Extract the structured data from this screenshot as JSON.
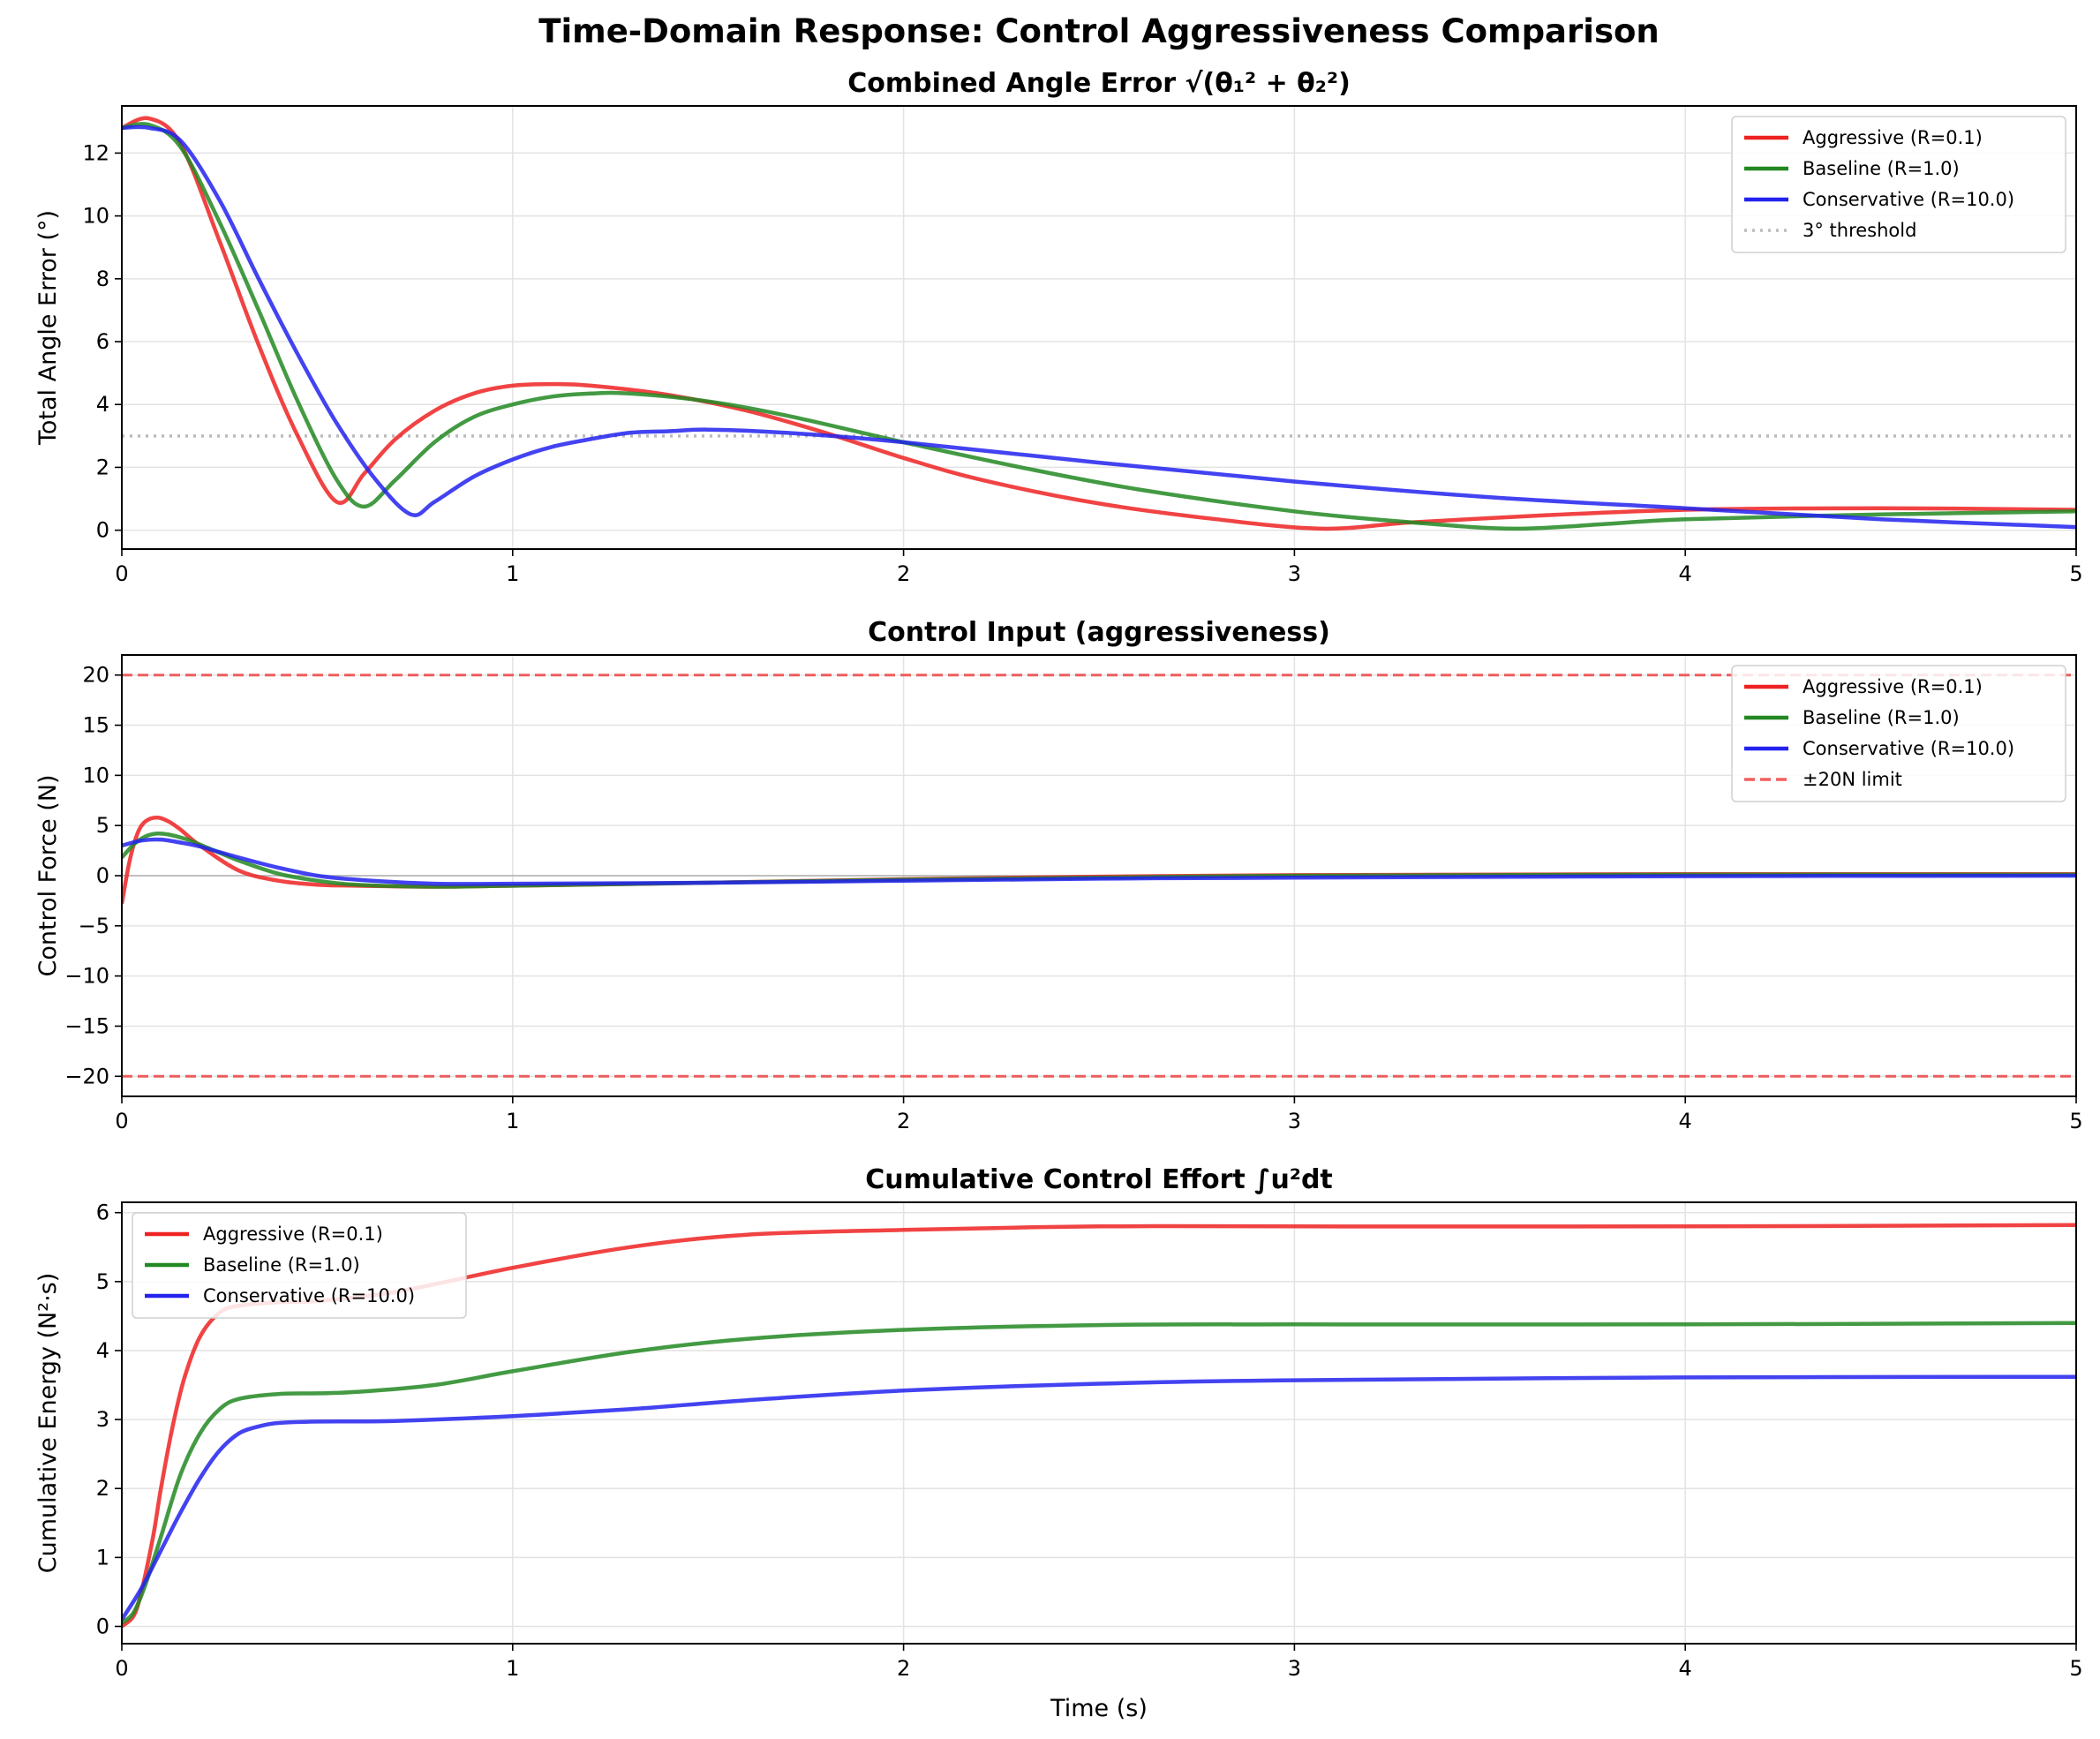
{
  "suptitle": "Time-Domain Response: Control Aggressiveness Comparison",
  "colors": {
    "aggressive": "#ee2222",
    "baseline": "#228822",
    "conservative": "#2222ee",
    "threshold": "#bbbbbb",
    "limit": "#ee4444"
  },
  "chart_data": [
    {
      "type": "line",
      "title": "Combined Angle Error √(θ₁² + θ₂²)",
      "xlabel": "",
      "ylabel": "Total Angle Error (°)",
      "xlim": [
        0,
        5
      ],
      "ylim": [
        -0.6,
        13.5
      ],
      "xticks": [
        0,
        1,
        2,
        3,
        4,
        5
      ],
      "yticks": [
        0,
        2,
        4,
        6,
        8,
        10,
        12
      ],
      "grid": true,
      "legend": "top-right",
      "series": [
        {
          "name": "Aggressive (R=0.1)",
          "color": "#ee2222",
          "x": [
            0,
            0.07,
            0.15,
            0.25,
            0.35,
            0.45,
            0.55,
            0.62,
            0.7,
            0.8,
            0.9,
            1.0,
            1.1,
            1.2,
            1.4,
            1.6,
            1.8,
            2.0,
            2.2,
            2.5,
            2.8,
            3.07,
            3.3,
            3.6,
            4.0,
            4.5,
            5.0
          ],
          "y": [
            12.8,
            13.1,
            12.3,
            9.2,
            5.9,
            3.0,
            0.9,
            1.8,
            2.9,
            3.8,
            4.35,
            4.6,
            4.65,
            4.6,
            4.3,
            3.8,
            3.1,
            2.3,
            1.6,
            0.85,
            0.35,
            0.05,
            0.25,
            0.45,
            0.65,
            0.7,
            0.65
          ]
        },
        {
          "name": "Baseline (R=1.0)",
          "color": "#228822",
          "x": [
            0,
            0.07,
            0.15,
            0.25,
            0.35,
            0.45,
            0.55,
            0.62,
            0.7,
            0.8,
            0.9,
            1.0,
            1.1,
            1.2,
            1.3,
            1.5,
            1.7,
            2.0,
            2.3,
            2.6,
            3.0,
            3.3,
            3.56,
            3.8,
            4.0,
            4.5,
            5.0
          ],
          "y": [
            12.8,
            12.9,
            12.2,
            9.8,
            7.0,
            4.1,
            1.6,
            0.75,
            1.6,
            2.8,
            3.6,
            4.0,
            4.25,
            4.35,
            4.35,
            4.1,
            3.65,
            2.8,
            2.0,
            1.3,
            0.6,
            0.25,
            0.05,
            0.2,
            0.35,
            0.5,
            0.6
          ]
        },
        {
          "name": "Conservative (R=10.0)",
          "color": "#2222ee",
          "x": [
            0,
            0.07,
            0.15,
            0.25,
            0.35,
            0.45,
            0.55,
            0.65,
            0.74,
            0.8,
            0.9,
            1.0,
            1.1,
            1.2,
            1.3,
            1.4,
            1.5,
            1.7,
            2.0,
            2.5,
            3.0,
            3.5,
            4.0,
            4.5,
            5.0
          ],
          "y": [
            12.8,
            12.8,
            12.4,
            10.5,
            8.0,
            5.6,
            3.4,
            1.6,
            0.5,
            0.9,
            1.7,
            2.25,
            2.65,
            2.9,
            3.1,
            3.15,
            3.2,
            3.1,
            2.8,
            2.15,
            1.55,
            1.05,
            0.7,
            0.35,
            0.1
          ]
        }
      ],
      "reference_lines": [
        {
          "name": "3° threshold",
          "y": 3,
          "style": "dotted",
          "color": "#bbbbbb"
        }
      ]
    },
    {
      "type": "line",
      "title": "Control Input (aggressiveness)",
      "xlabel": "",
      "ylabel": "Control Force (N)",
      "xlim": [
        0,
        5
      ],
      "ylim": [
        -22,
        22
      ],
      "xticks": [
        0,
        1,
        2,
        3,
        4,
        5
      ],
      "yticks": [
        -20,
        -15,
        -10,
        -5,
        0,
        5,
        10,
        15,
        20
      ],
      "grid": true,
      "legend": "top-right",
      "series": [
        {
          "name": "Aggressive (R=0.1)",
          "color": "#ee2222",
          "x": [
            0,
            0.02,
            0.04,
            0.06,
            0.09,
            0.12,
            0.15,
            0.2,
            0.3,
            0.4,
            0.5,
            0.6,
            0.8,
            1.0,
            1.5,
            2.0,
            2.5,
            3.0,
            4.0,
            5.0
          ],
          "y": [
            -2.8,
            1.5,
            4.2,
            5.4,
            5.8,
            5.4,
            4.6,
            3.0,
            0.5,
            -0.5,
            -0.9,
            -1.0,
            -1.1,
            -1.0,
            -0.7,
            -0.35,
            -0.1,
            0.05,
            0.15,
            0.15
          ]
        },
        {
          "name": "Baseline (R=1.0)",
          "color": "#228822",
          "x": [
            0,
            0.03,
            0.06,
            0.09,
            0.12,
            0.16,
            0.2,
            0.3,
            0.4,
            0.5,
            0.6,
            0.8,
            1.0,
            1.5,
            2.0,
            2.5,
            3.0,
            4.0,
            5.0
          ],
          "y": [
            1.8,
            3.1,
            3.9,
            4.2,
            4.1,
            3.7,
            3.1,
            1.5,
            0.2,
            -0.5,
            -0.9,
            -1.1,
            -1.0,
            -0.7,
            -0.4,
            -0.2,
            0.0,
            0.1,
            0.1
          ]
        },
        {
          "name": "Conservative (R=10.0)",
          "color": "#2222ee",
          "x": [
            0,
            0.05,
            0.1,
            0.15,
            0.2,
            0.3,
            0.4,
            0.5,
            0.6,
            0.8,
            1.0,
            1.5,
            2.0,
            2.5,
            3.0,
            4.0,
            5.0
          ],
          "y": [
            3.0,
            3.5,
            3.6,
            3.3,
            2.9,
            1.8,
            0.8,
            0.0,
            -0.4,
            -0.8,
            -0.8,
            -0.7,
            -0.5,
            -0.3,
            -0.2,
            -0.05,
            0.0
          ]
        }
      ],
      "reference_lines": [
        {
          "name": "±20N limit",
          "y": 20,
          "style": "dashed",
          "color": "#ee4444"
        },
        {
          "name": "",
          "y": -20,
          "style": "dashed",
          "color": "#ee4444"
        },
        {
          "name": "",
          "y": 0,
          "style": "solid",
          "color": "#999999"
        }
      ]
    },
    {
      "type": "line",
      "title": "Cumulative Control Effort ∫u²dt",
      "xlabel": "Time (s)",
      "ylabel": "Cumulative Energy (N²·s)",
      "xlim": [
        0,
        5
      ],
      "ylim": [
        -0.25,
        6.15
      ],
      "xticks": [
        0,
        1,
        2,
        3,
        4,
        5
      ],
      "yticks": [
        0,
        1,
        2,
        3,
        4,
        5,
        6
      ],
      "grid": true,
      "legend": "top-left",
      "series": [
        {
          "name": "Aggressive (R=0.1)",
          "color": "#ee2222",
          "x": [
            0,
            0.03,
            0.05,
            0.08,
            0.1,
            0.13,
            0.16,
            0.2,
            0.25,
            0.3,
            0.4,
            0.5,
            0.7,
            1.0,
            1.3,
            1.6,
            2.0,
            2.5,
            3.0,
            4.0,
            5.0
          ],
          "y": [
            0,
            0.15,
            0.5,
            1.3,
            2.0,
            2.9,
            3.6,
            4.2,
            4.55,
            4.65,
            4.7,
            4.72,
            4.85,
            5.2,
            5.5,
            5.68,
            5.75,
            5.8,
            5.8,
            5.8,
            5.82
          ]
        },
        {
          "name": "Baseline (R=1.0)",
          "color": "#228822",
          "x": [
            0,
            0.03,
            0.06,
            0.1,
            0.15,
            0.2,
            0.25,
            0.3,
            0.4,
            0.5,
            0.6,
            0.8,
            1.0,
            1.3,
            1.6,
            2.0,
            2.5,
            3.0,
            4.0,
            5.0
          ],
          "y": [
            0.05,
            0.2,
            0.6,
            1.3,
            2.2,
            2.8,
            3.15,
            3.3,
            3.37,
            3.38,
            3.4,
            3.5,
            3.7,
            3.98,
            4.17,
            4.3,
            4.37,
            4.38,
            4.38,
            4.4
          ]
        },
        {
          "name": "Conservative (R=10.0)",
          "color": "#2222ee",
          "x": [
            0,
            0.05,
            0.1,
            0.15,
            0.2,
            0.25,
            0.3,
            0.35,
            0.4,
            0.5,
            0.7,
            1.0,
            1.3,
            1.6,
            2.0,
            2.5,
            3.0,
            4.0,
            5.0
          ],
          "y": [
            0.1,
            0.55,
            1.1,
            1.65,
            2.15,
            2.55,
            2.8,
            2.9,
            2.95,
            2.97,
            2.98,
            3.05,
            3.15,
            3.28,
            3.42,
            3.52,
            3.57,
            3.61,
            3.62
          ]
        }
      ],
      "reference_lines": []
    }
  ]
}
